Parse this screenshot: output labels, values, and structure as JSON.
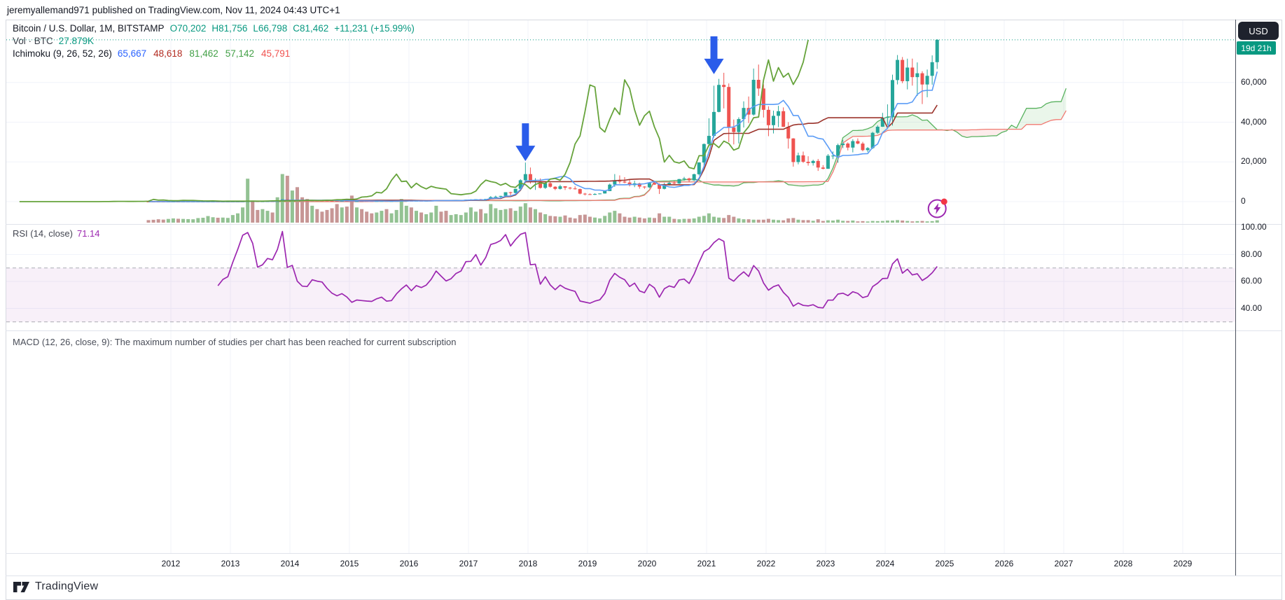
{
  "header": {
    "published_line": "jeremyallemand971 published on TradingView.com, Nov 11, 2024 04:43 UTC+1"
  },
  "legend": {
    "symbol_line": "Bitcoin / U.S. Dollar, 1M, BITSTAMP",
    "ohlc": {
      "o": "O70,202",
      "h": "H81,756",
      "l": "L66,798",
      "c": "C81,462",
      "change": "+11,231 (+15.99%)"
    },
    "volume": {
      "label": "Vol · BTC",
      "value": "27.879K"
    },
    "ichimoku": {
      "label": "Ichimoku (9, 26, 52, 26)",
      "values": [
        {
          "text": "65,667",
          "color": "#2962ff"
        },
        {
          "text": "48,618",
          "color": "#b22b20"
        },
        {
          "text": "81,462",
          "color": "#43a047"
        },
        {
          "text": "57,142",
          "color": "#43a047"
        },
        {
          "text": "45,791",
          "color": "#f0524f"
        }
      ]
    }
  },
  "price_scale": {
    "currency": "USD",
    "countdown": "19d 21h",
    "labels": [
      {
        "text": "60,000",
        "value": 60000
      },
      {
        "text": "40,000",
        "value": 40000
      },
      {
        "text": "20,000",
        "value": 20000
      },
      {
        "text": "0",
        "value": 0
      }
    ]
  },
  "rsi": {
    "label": "RSI (14, close)",
    "value": "71.14",
    "upper_band": 70,
    "lower_band": 30,
    "axis_labels": [
      {
        "text": "100.00",
        "value": 100
      },
      {
        "text": "80.00",
        "value": 80
      },
      {
        "text": "60.00",
        "value": 60
      },
      {
        "text": "40.00",
        "value": 40
      }
    ]
  },
  "macd": {
    "message": "MACD (12, 26, close, 9): The maximum number of studies per chart has been reached for current subscription"
  },
  "time_axis": {
    "years": [
      "2012",
      "2013",
      "2014",
      "2015",
      "2016",
      "2017",
      "2018",
      "2019",
      "2020",
      "2021",
      "2022",
      "2023",
      "2024",
      "2025",
      "2026",
      "2027",
      "2028",
      "2029"
    ]
  },
  "footer": {
    "brand": "TradingView"
  },
  "colors": {
    "up": "#26a69a",
    "down": "#ef5350",
    "vol_up": "#93c293",
    "vol_down": "#c79695",
    "tenkan": "#5b9cf6",
    "kijun": "#9c342c",
    "chikou": "#66a33b",
    "span_a_line": "#59b25f",
    "span_b_line": "#f07a72",
    "cloud_green": "rgba(103,191,103,0.14)",
    "cloud_red": "rgba(240,122,114,0.14)",
    "price_line": "#089981",
    "accent": "#089981",
    "rsi_line": "#9c27b0",
    "rsi_band_fill": "rgba(156,39,176,0.07)",
    "rsi_band_edge": "#a9abb3",
    "arrow": "#2a5cea",
    "marker": "#9c27b0",
    "marker_dot": "#f23645",
    "grid": "#f0f3fa",
    "separator": "#e0e3eb",
    "axis_line": "#4c525e",
    "badge_dark": "#1e222d",
    "text": "#131722"
  },
  "chart_data": {
    "type": "candlestick+indicators",
    "title": "Bitcoin / U.S. Dollar, 1M, BITSTAMP",
    "timeframe": "1M",
    "start_month": "2011-08",
    "x_axis": {
      "visible_years": [
        2012,
        2029
      ]
    },
    "y_axis": {
      "price_ticks": [
        60000,
        40000,
        20000,
        0
      ]
    },
    "current_price": 81462,
    "indicators": {
      "ichimoku_params": [
        9,
        26,
        52,
        26
      ],
      "rsi_params": [
        14,
        "close"
      ],
      "volume": "BTC"
    },
    "candles_ohlcv": [
      [
        10.9,
        11.0,
        5.9,
        8.2,
        30
      ],
      [
        8.2,
        8.9,
        4.8,
        5.0,
        34
      ],
      [
        5.0,
        5.2,
        2.0,
        3.2,
        40
      ],
      [
        3.2,
        3.6,
        1.9,
        3.0,
        36
      ],
      [
        3.0,
        4.9,
        2.5,
        4.7,
        44
      ],
      [
        4.7,
        7.4,
        4.3,
        5.5,
        50
      ],
      [
        5.5,
        6.1,
        3.9,
        4.9,
        46
      ],
      [
        4.9,
        5.5,
        4.4,
        4.9,
        44
      ],
      [
        4.9,
        5.6,
        4.6,
        5.0,
        42
      ],
      [
        5.0,
        5.3,
        4.8,
        5.2,
        40
      ],
      [
        5.2,
        6.9,
        5.1,
        6.7,
        54
      ],
      [
        6.7,
        9.5,
        6.5,
        9.4,
        58
      ],
      [
        9.4,
        16.4,
        7.5,
        10.2,
        78
      ],
      [
        10.2,
        12.9,
        9.8,
        12.4,
        64
      ],
      [
        12.4,
        12.8,
        10.2,
        10.6,
        58
      ],
      [
        10.6,
        12.6,
        10.3,
        12.6,
        60
      ],
      [
        12.6,
        13.9,
        12.4,
        13.5,
        56
      ],
      [
        13.5,
        20.6,
        13.2,
        20.4,
        90
      ],
      [
        20.4,
        33.4,
        19.5,
        33.4,
        110
      ],
      [
        33.4,
        95.7,
        33.0,
        93.0,
        180
      ],
      [
        93,
        266,
        50,
        139,
        520
      ],
      [
        139,
        146,
        79,
        128,
        260
      ],
      [
        128,
        130,
        88,
        97,
        150
      ],
      [
        97,
        111,
        65,
        106,
        160
      ],
      [
        106,
        135,
        92,
        135,
        140
      ],
      [
        135,
        147,
        109,
        133,
        120
      ],
      [
        133,
        267,
        109,
        204,
        300
      ],
      [
        204,
        1242,
        198,
        1130,
        575
      ],
      [
        1130,
        1240,
        382,
        732,
        555
      ],
      [
        732,
        1030,
        624,
        806,
        380
      ],
      [
        806,
        830,
        400,
        550,
        420
      ],
      [
        550,
        710,
        436,
        454,
        300
      ],
      [
        454,
        550,
        340,
        446,
        280
      ],
      [
        446,
        630,
        420,
        622,
        200
      ],
      [
        622,
        680,
        540,
        597,
        160
      ],
      [
        597,
        658,
        560,
        583,
        130
      ],
      [
        583,
        600,
        443,
        477,
        150
      ],
      [
        477,
        490,
        365,
        387,
        170
      ],
      [
        387,
        412,
        275,
        338,
        220
      ],
      [
        338,
        460,
        320,
        378,
        180
      ],
      [
        378,
        384,
        285,
        318,
        190
      ],
      [
        318,
        320,
        152,
        217,
        320
      ],
      [
        217,
        265,
        210,
        254,
        180
      ],
      [
        254,
        300,
        236,
        244,
        160
      ],
      [
        244,
        262,
        210,
        236,
        130
      ],
      [
        236,
        248,
        227,
        230,
        110
      ],
      [
        230,
        268,
        220,
        263,
        120
      ],
      [
        263,
        318,
        255,
        284,
        140
      ],
      [
        284,
        288,
        198,
        230,
        160
      ],
      [
        230,
        246,
        223,
        236,
        110
      ],
      [
        236,
        334,
        235,
        314,
        150
      ],
      [
        314,
        504,
        290,
        377,
        280
      ],
      [
        377,
        469,
        330,
        430,
        200
      ],
      [
        430,
        436,
        350,
        368,
        180
      ],
      [
        368,
        441,
        365,
        437,
        140
      ],
      [
        437,
        444,
        382,
        416,
        120
      ],
      [
        416,
        470,
        410,
        448,
        100
      ],
      [
        448,
        554,
        442,
        531,
        120
      ],
      [
        531,
        780,
        520,
        673,
        200
      ],
      [
        673,
        706,
        590,
        624,
        130
      ],
      [
        624,
        630,
        465,
        575,
        140
      ],
      [
        575,
        629,
        565,
        610,
        90
      ],
      [
        610,
        720,
        600,
        700,
        100
      ],
      [
        700,
        755,
        670,
        745,
        90
      ],
      [
        745,
        982,
        740,
        963,
        120
      ],
      [
        963,
        1191,
        752,
        970,
        180
      ],
      [
        970,
        1220,
        920,
        1190,
        130
      ],
      [
        1190,
        1330,
        891,
        1080,
        160
      ],
      [
        1080,
        1347,
        1060,
        1347,
        110
      ],
      [
        1347,
        2760,
        1320,
        2286,
        220
      ],
      [
        2286,
        3000,
        2076,
        2468,
        170
      ],
      [
        2468,
        2930,
        1830,
        2875,
        150
      ],
      [
        2875,
        4765,
        2664,
        4735,
        160
      ],
      [
        4735,
        4980,
        2980,
        4360,
        170
      ],
      [
        4360,
        6480,
        4110,
        6440,
        140
      ],
      [
        6440,
        11300,
        5380,
        10770,
        190
      ],
      [
        10770,
        19666,
        10400,
        13850,
        230
      ],
      [
        13850,
        17176,
        9035,
        10100,
        180
      ],
      [
        10100,
        11786,
        5920,
        10310,
        160
      ],
      [
        10310,
        11660,
        6600,
        6928,
        120
      ],
      [
        6928,
        9745,
        6425,
        9240,
        100
      ],
      [
        9240,
        9990,
        7040,
        7494,
        80
      ],
      [
        7494,
        7750,
        5780,
        6404,
        75
      ],
      [
        6404,
        8507,
        6070,
        7735,
        70
      ],
      [
        7735,
        7760,
        5880,
        7014,
        85
      ],
      [
        7014,
        7410,
        6100,
        6626,
        60
      ],
      [
        6626,
        7680,
        6055,
        6317,
        50
      ],
      [
        6317,
        6550,
        3653,
        4017,
        90
      ],
      [
        4017,
        4410,
        3122,
        3742,
        95
      ],
      [
        3742,
        4110,
        3350,
        3457,
        70
      ],
      [
        3457,
        4190,
        3373,
        3854,
        60
      ],
      [
        3854,
        4140,
        3670,
        4105,
        50
      ],
      [
        4105,
        5627,
        4060,
        5320,
        80
      ],
      [
        5320,
        9090,
        5320,
        8574,
        120
      ],
      [
        8574,
        13880,
        7432,
        10817,
        140
      ],
      [
        10817,
        13200,
        9071,
        10085,
        110
      ],
      [
        10085,
        12325,
        9230,
        9630,
        70
      ],
      [
        9630,
        10949,
        7700,
        8293,
        60
      ],
      [
        8293,
        10540,
        7293,
        9199,
        70
      ],
      [
        9199,
        9505,
        6515,
        7569,
        60
      ],
      [
        7569,
        7795,
        6435,
        7193,
        50
      ],
      [
        7193,
        9570,
        6850,
        9350,
        60
      ],
      [
        9350,
        10500,
        8445,
        8599,
        55
      ],
      [
        8599,
        9190,
        3850,
        6438,
        110
      ],
      [
        6438,
        9460,
        6150,
        8658,
        70
      ],
      [
        8658,
        10070,
        8101,
        9461,
        70
      ],
      [
        9461,
        10380,
        8830,
        9137,
        45
      ],
      [
        9137,
        11450,
        8900,
        11351,
        40
      ],
      [
        11351,
        12486,
        10510,
        11655,
        45
      ],
      [
        11655,
        12050,
        9825,
        10776,
        45
      ],
      [
        10776,
        14100,
        10374,
        13797,
        50
      ],
      [
        13797,
        19863,
        13195,
        19698,
        70
      ],
      [
        19698,
        29300,
        17572,
        28996,
        80
      ],
      [
        28996,
        41950,
        27734,
        33108,
        110
      ],
      [
        33108,
        58352,
        32296,
        45164,
        70
      ],
      [
        45164,
        61800,
        44950,
        58763,
        60
      ],
      [
        58763,
        64863,
        46930,
        57720,
        55
      ],
      [
        57720,
        59500,
        30000,
        37298,
        90
      ],
      [
        37298,
        41330,
        28805,
        35026,
        70
      ],
      [
        35026,
        42448,
        29278,
        41553,
        50
      ],
      [
        41553,
        50500,
        37300,
        47160,
        40
      ],
      [
        47160,
        52920,
        39573,
        43824,
        40
      ],
      [
        43824,
        66999,
        43283,
        61318,
        35
      ],
      [
        61318,
        69000,
        53245,
        56950,
        35
      ],
      [
        56950,
        59053,
        42333,
        46211,
        35
      ],
      [
        46211,
        47990,
        32950,
        38491,
        45
      ],
      [
        38491,
        45821,
        34322,
        43193,
        35
      ],
      [
        43193,
        48234,
        37555,
        45524,
        30
      ],
      [
        45524,
        47448,
        37578,
        37648,
        28
      ],
      [
        37648,
        40023,
        26700,
        31801,
        50
      ],
      [
        31801,
        31975,
        17593,
        19926,
        55
      ],
      [
        19926,
        24668,
        18781,
        23293,
        35
      ],
      [
        23293,
        25211,
        19526,
        20046,
        30
      ],
      [
        20046,
        22850,
        18125,
        19424,
        30
      ],
      [
        19424,
        21085,
        18157,
        20492,
        22
      ],
      [
        20492,
        21480,
        15460,
        17163,
        40
      ],
      [
        17163,
        18387,
        16256,
        16540,
        20
      ],
      [
        16540,
        23960,
        16490,
        23125,
        28
      ],
      [
        23125,
        25250,
        21400,
        23141,
        25
      ],
      [
        23141,
        29184,
        19549,
        28465,
        35
      ],
      [
        28465,
        31050,
        26942,
        29233,
        22
      ],
      [
        29233,
        29820,
        25800,
        27210,
        20
      ],
      [
        27210,
        31430,
        24800,
        30472,
        25
      ],
      [
        30472,
        31850,
        28855,
        29230,
        15
      ],
      [
        29230,
        30100,
        25350,
        25934,
        18
      ],
      [
        25934,
        27480,
        24930,
        26962,
        14
      ],
      [
        26962,
        35150,
        26550,
        34656,
        20
      ],
      [
        34656,
        38445,
        34100,
        37712,
        18
      ],
      [
        37712,
        44700,
        37615,
        42272,
        20
      ],
      [
        42272,
        48969,
        38501,
        42580,
        25
      ],
      [
        42580,
        63933,
        38300,
        61198,
        25
      ],
      [
        61198,
        73794,
        59005,
        71333,
        30
      ],
      [
        71333,
        72797,
        59600,
        60636,
        25
      ],
      [
        60636,
        71958,
        56500,
        67491,
        20
      ],
      [
        67491,
        71997,
        58400,
        62678,
        15
      ],
      [
        62678,
        70079,
        53219,
        64619,
        18
      ],
      [
        64619,
        65659,
        49121,
        58969,
        20
      ],
      [
        58969,
        66500,
        52550,
        63329,
        15
      ],
      [
        63329,
        73620,
        58895,
        70202,
        18
      ],
      [
        70202,
        81756,
        66798,
        81462,
        27.879
      ]
    ],
    "annotations": {
      "arrows_down": [
        {
          "month": "2017-12",
          "tip_price": 20400
        },
        {
          "month": "2021-02",
          "tip_price": 64200
        }
      ],
      "flash_marker_month": "2024-11"
    }
  }
}
